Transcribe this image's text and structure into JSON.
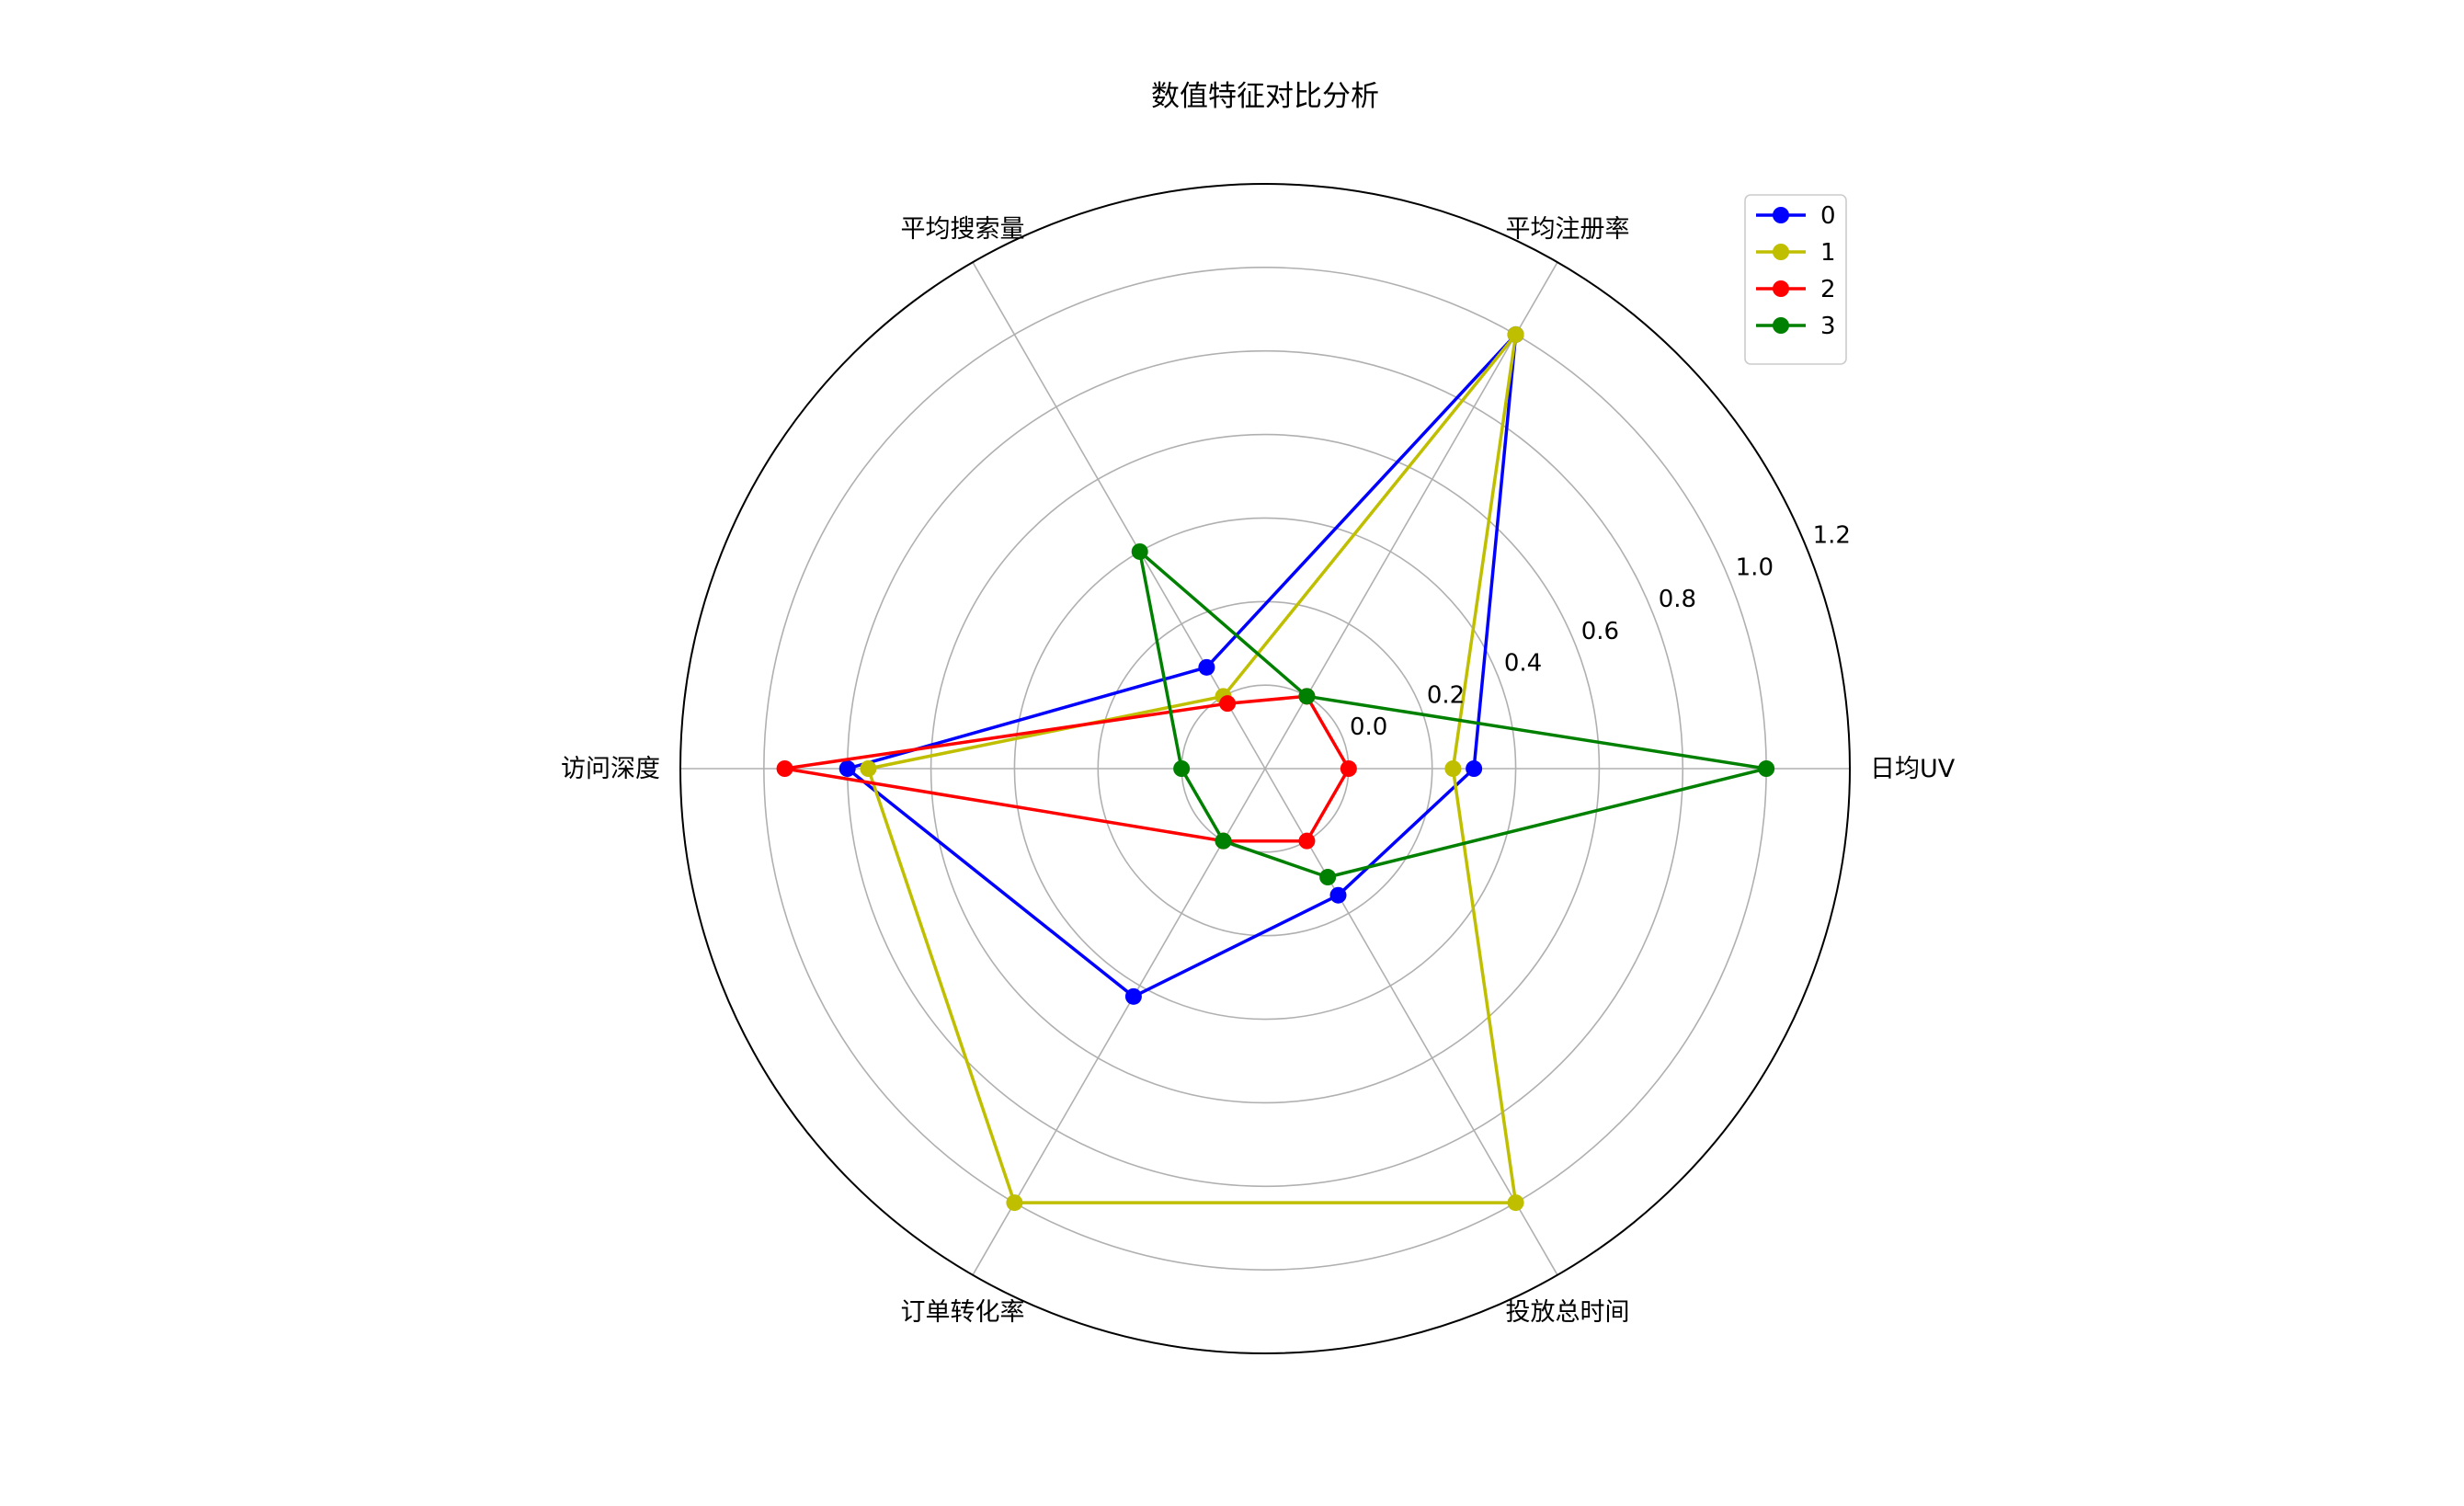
{
  "chart_data": {
    "type": "radar",
    "title": "数值特征对比分析",
    "axes": [
      "日均UV",
      "平均注册率",
      "平均搜索量",
      "访问深度",
      "订单转化率",
      "投放总时间"
    ],
    "r_ticks": [
      "0.0",
      "0.2",
      "0.4",
      "0.6",
      "0.8",
      "1.0",
      "1.2"
    ],
    "r_tick_values": [
      0.0,
      0.2,
      0.4,
      0.6,
      0.8,
      1.0,
      1.2
    ],
    "rlim": [
      -0.2,
      1.2
    ],
    "grid": true,
    "legend_position": "top-right",
    "series": [
      {
        "name": "0",
        "color": "#0000ff",
        "values": [
          0.3,
          1.0,
          0.08,
          0.8,
          0.43,
          0.15
        ]
      },
      {
        "name": "1",
        "color": "#bfbf00",
        "values": [
          0.25,
          1.0,
          0.0,
          0.75,
          1.0,
          1.0
        ]
      },
      {
        "name": "2",
        "color": "#ff0000",
        "values": [
          0.0,
          0.0,
          -0.02,
          0.95,
          0.0,
          0.0
        ]
      },
      {
        "name": "3",
        "color": "#008000",
        "values": [
          1.0,
          0.0,
          0.4,
          0.0,
          0.0,
          0.1
        ]
      }
    ]
  }
}
